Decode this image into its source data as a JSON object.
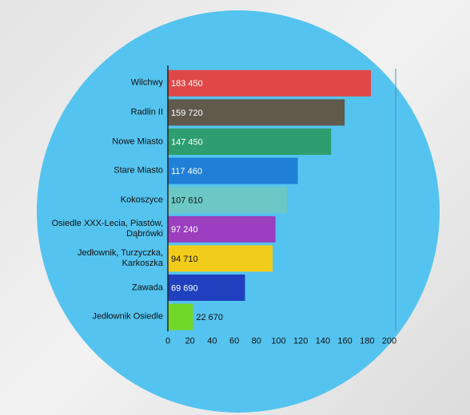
{
  "chart_data": {
    "type": "hbar",
    "categories": [
      "Wilchwy",
      "Radlin II",
      "Nowe Miasto",
      "Stare Miasto",
      "Kokoszyce",
      "Osiedle XXX-Lecia, Piastów, Dąbrówki",
      "Jedłownik, Turzyczka, Karkoszka",
      "Zawada",
      "Jedłownik Osiedle"
    ],
    "values": [
      183.45,
      159.72,
      147.45,
      117.46,
      107.61,
      97.24,
      94.71,
      69.69,
      22.67
    ],
    "value_labels": [
      "183 450",
      "159 720",
      "147 450",
      "117 460",
      "107 610",
      "97 240",
      "94 710",
      "69 690",
      "22 670"
    ],
    "colors": [
      "#e04848",
      "#5f5a4c",
      "#2e9e6e",
      "#2080d8",
      "#6cc8c4",
      "#9b3fc0",
      "#f2cc1a",
      "#2040c0",
      "#70d828"
    ],
    "xlim": [
      0,
      200
    ],
    "xticks": [
      0,
      20,
      40,
      60,
      80,
      100,
      120,
      140,
      160,
      180,
      200
    ]
  }
}
